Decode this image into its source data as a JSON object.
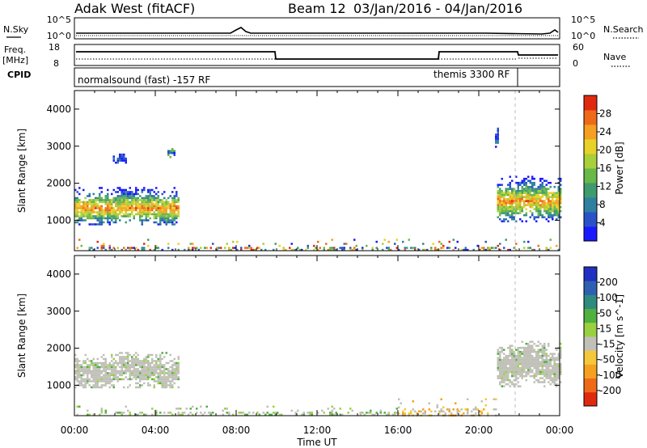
{
  "header": {
    "station": "Adak West (fitACF)",
    "beam": "Beam 12",
    "date_range": "03/Jan/2016 - 04/Jan/2016"
  },
  "top_strip": {
    "left_label": "N.Sky",
    "right_label": "N.Search",
    "left_ticks": [
      "10^5",
      "10^0"
    ],
    "right_ticks": [
      "10^5",
      "10^0"
    ]
  },
  "freq_strip": {
    "left_label_1": "Freq.",
    "left_label_2": "[MHz]",
    "right_label": "Nave",
    "left_ticks": [
      "18",
      "8"
    ],
    "right_ticks": [
      "60",
      "0"
    ]
  },
  "cpid": {
    "label": "CPID",
    "modes": [
      {
        "name": "normalsound (fast) -157 RF",
        "start_hour": 0,
        "end_hour": 21.8
      },
      {
        "name": "themis 3300 RF",
        "start_hour": 21.8,
        "end_hour": 24
      }
    ]
  },
  "chart_data": [
    {
      "type": "heatmap",
      "panel": "power",
      "ylabel": "Slant Range [km]",
      "ylim": [
        180,
        4500
      ],
      "yticks": [
        1000,
        2000,
        3000,
        4000
      ],
      "xlim": [
        0,
        24
      ],
      "colorbar": {
        "label": "Power [dB]",
        "ticks": [
          "4",
          "8",
          "12",
          "16",
          "20",
          "24",
          "28"
        ],
        "colors": [
          "#1a1aff",
          "#2a52c8",
          "#2f80a0",
          "#3f9a70",
          "#68b84a",
          "#a9cf3a",
          "#e8d22a",
          "#f5a020",
          "#ef6a18",
          "#e02a10"
        ]
      },
      "echo_regions": [
        {
          "x_start": 0.0,
          "x_end": 5.2,
          "range_low": 900,
          "range_high": 1900,
          "level": "high"
        },
        {
          "x_start": 1.9,
          "x_end": 2.6,
          "range_low": 2550,
          "range_high": 2800,
          "level": "low"
        },
        {
          "x_start": 4.6,
          "x_end": 5.0,
          "range_low": 2700,
          "range_high": 2950,
          "level": "mid"
        },
        {
          "x_start": 20.9,
          "x_end": 24.0,
          "range_low": 1000,
          "range_high": 2200,
          "level": "high"
        },
        {
          "x_start": 20.8,
          "x_end": 21.0,
          "range_low": 2950,
          "range_high": 3500,
          "level": "low"
        },
        {
          "x_start": 0.0,
          "x_end": 24.0,
          "range_low": 180,
          "range_high": 500,
          "level": "scatter"
        }
      ]
    },
    {
      "type": "heatmap",
      "panel": "velocity",
      "ylabel": "Slant Range [km]",
      "xlabel": "Time UT",
      "ylim": [
        180,
        4500
      ],
      "yticks": [
        1000,
        2000,
        3000,
        4000
      ],
      "xlim": [
        0,
        24
      ],
      "xticks": [
        "00:00",
        "04:00",
        "08:00",
        "12:00",
        "16:00",
        "20:00",
        "00:00"
      ],
      "colorbar": {
        "label": "Velocity [m s^-1]",
        "ticks": [
          "200",
          "100",
          "50",
          "15",
          "-15",
          "-50",
          "-100",
          "-200"
        ],
        "colors": [
          "#2030c0",
          "#2f60b0",
          "#2f8a80",
          "#50b040",
          "#9ad040",
          "#c0c0b8",
          "#f5c83a",
          "#f5a020",
          "#ef6a18",
          "#e02a10"
        ]
      },
      "echo_regions": [
        {
          "x_start": 0.0,
          "x_end": 5.2,
          "range_low": 950,
          "range_high": 1900,
          "level": "ground"
        },
        {
          "x_start": 20.9,
          "x_end": 24.0,
          "range_low": 1000,
          "range_high": 2200,
          "level": "ground"
        },
        {
          "x_start": 0.0,
          "x_end": 16.0,
          "range_low": 180,
          "range_high": 450,
          "level": "positive"
        },
        {
          "x_start": 16.0,
          "x_end": 21.0,
          "range_low": 180,
          "range_high": 650,
          "level": "negative"
        }
      ]
    }
  ]
}
